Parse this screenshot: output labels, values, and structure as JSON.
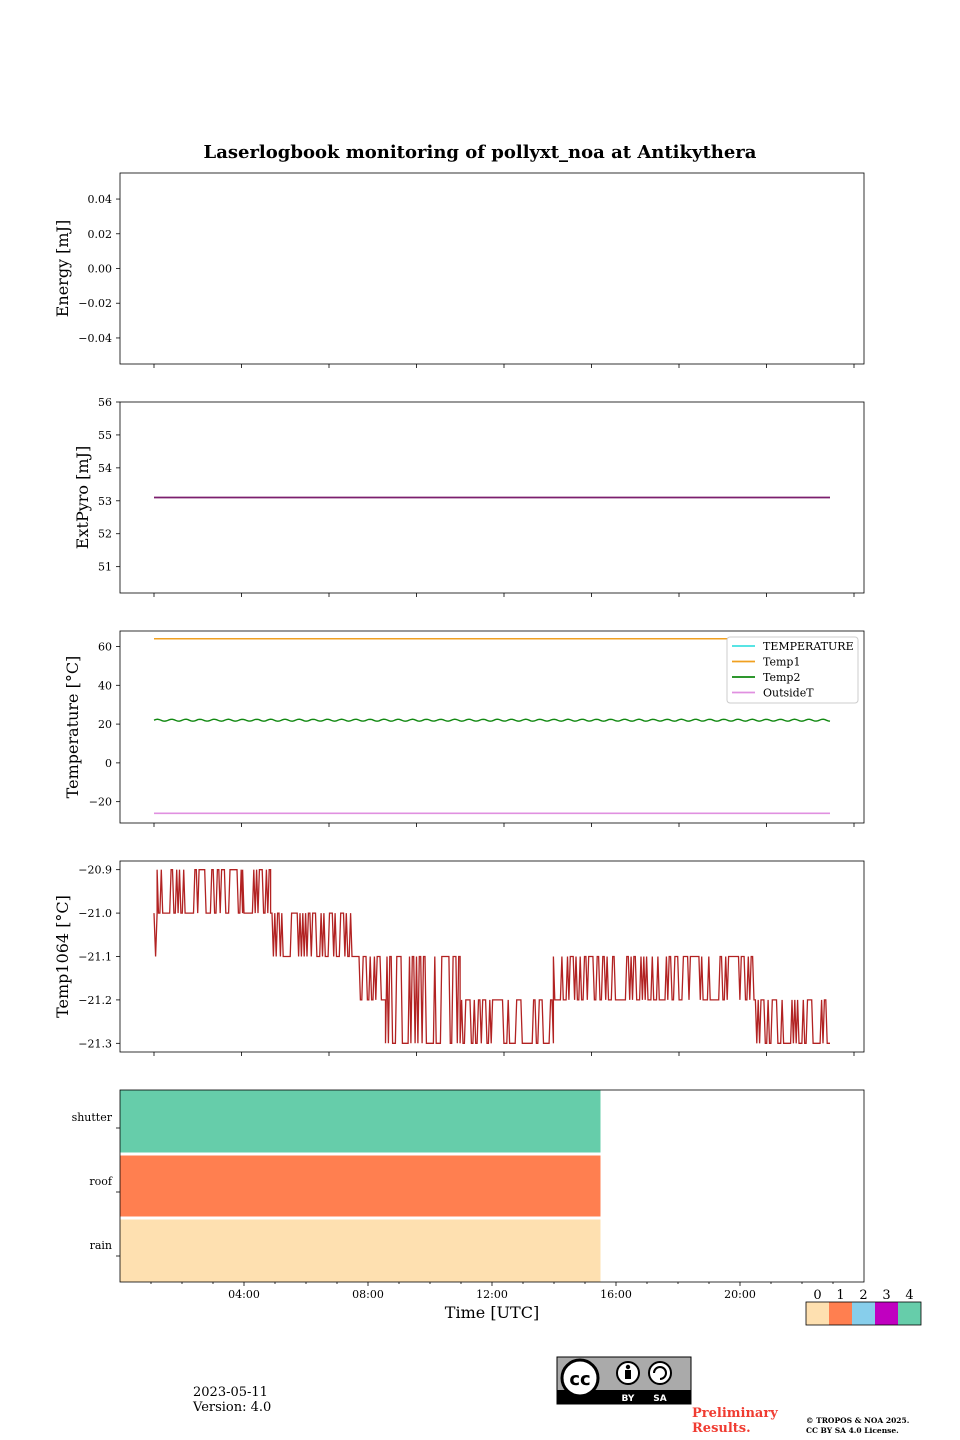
{
  "title": "Laserlogbook monitoring of pollyxt_noa at Antikythera",
  "chart_data": [
    {
      "type": "line",
      "ylabel": "Energy [mJ]",
      "ylim": [
        -0.055,
        0.055
      ],
      "yticks": [
        0.04,
        0.02,
        0.0,
        -0.02,
        -0.04
      ],
      "ytick_labels": [
        "0.04",
        "0.02",
        "0.00",
        "−0.02",
        "−0.04"
      ],
      "series": []
    },
    {
      "type": "line",
      "ylabel": "ExtPyro [mJ]",
      "ylim": [
        50.2,
        56.0
      ],
      "yticks": [
        56,
        55,
        54,
        53,
        52,
        51
      ],
      "ytick_labels": [
        "56",
        "55",
        "54",
        "53",
        "52",
        "51"
      ],
      "series": [
        {
          "x_range": [
            1.15,
            22.9
          ],
          "constant": 53.1,
          "color": "#7b1f6e"
        }
      ]
    },
    {
      "type": "line",
      "ylabel": "Temperature [°C]",
      "ylim": [
        -31,
        68
      ],
      "yticks": [
        60,
        40,
        20,
        0,
        -20
      ],
      "ytick_labels": [
        "60",
        "40",
        "20",
        "0",
        "−20"
      ],
      "legend_placement": "top-right",
      "series": [
        {
          "name": "TEMPERATURE",
          "color": "#40e0e0",
          "constant": null,
          "x_range": [
            1.15,
            22.9
          ]
        },
        {
          "name": "Temp1",
          "color": "#f0a020",
          "constant": 64.0,
          "x_range": [
            1.15,
            22.9
          ]
        },
        {
          "name": "Temp2",
          "color": "#118811",
          "mean": 22.0,
          "oscillation": 0.5,
          "x_range": [
            1.15,
            22.9
          ]
        },
        {
          "name": "OutsideT",
          "color": "#e090e0",
          "constant": -26.0,
          "x_range": [
            1.15,
            22.9
          ]
        }
      ]
    },
    {
      "type": "line",
      "ylabel": "Temp1064 [°C]",
      "ylim": [
        -21.32,
        -20.88
      ],
      "yticks": [
        -20.9,
        -21.0,
        -21.1,
        -21.2,
        -21.3
      ],
      "ytick_labels": [
        "−20.9",
        "−21.0",
        "−21.1",
        "−21.2",
        "−21.3"
      ],
      "series": [
        {
          "color": "#b22222",
          "segments": [
            {
              "x": [
                1.15,
                1.25
              ],
              "values": [
                -21.0,
                -21.1
              ]
            },
            {
              "x": [
                1.25,
                4.0
              ],
              "values": [
                -20.9,
                -21.0
              ]
            },
            {
              "x": [
                4.0,
                4.9
              ],
              "values": [
                -20.9,
                -21.0
              ]
            },
            {
              "x": [
                4.9,
                7.7
              ],
              "values": [
                -21.0,
                -21.1
              ]
            },
            {
              "x": [
                7.7,
                8.6
              ],
              "values": [
                -21.1,
                -21.2
              ]
            },
            {
              "x": [
                8.6,
                11.0
              ],
              "values": [
                -21.1,
                -21.3
              ]
            },
            {
              "x": [
                11.0,
                14.0
              ],
              "values": [
                -21.2,
                -21.3
              ]
            },
            {
              "x": [
                14.0,
                20.5
              ],
              "values": [
                -21.1,
                -21.2
              ]
            },
            {
              "x": [
                20.5,
                22.9
              ],
              "values": [
                -21.2,
                -21.3
              ]
            }
          ]
        }
      ]
    },
    {
      "type": "heatmap",
      "xlabel": "Time [UTC]",
      "xlim": [
        0,
        24
      ],
      "xtick_labels": [
        "04:00",
        "08:00",
        "12:00",
        "16:00",
        "20:00"
      ],
      "xticks": [
        4,
        8,
        12,
        16,
        20
      ],
      "rows": [
        "shutter",
        "roof",
        "rain"
      ],
      "blocks": [
        {
          "row": "shutter",
          "x": [
            0,
            15.5
          ],
          "flag": 4
        },
        {
          "row": "roof",
          "x": [
            0,
            15.5
          ],
          "flag": 1
        },
        {
          "row": "rain",
          "x": [
            0,
            15.5
          ],
          "flag": 0
        }
      ]
    }
  ],
  "colorbar": {
    "labels": [
      "0",
      "1",
      "2",
      "3",
      "4"
    ],
    "colors": [
      "#fee0b0",
      "#ff7f50",
      "#87ceeb",
      "#c000c0",
      "#66cdaa"
    ]
  },
  "footer": {
    "date": "2023-05-11",
    "version": "Version: 4.0",
    "license_badge": "cc-by-sa-icon",
    "badge_by": "BY",
    "badge_sa": "SA",
    "preliminary_line1": "Preliminary",
    "preliminary_line2": "Results.",
    "copyright_line1": "© TROPOS & NOA 2025.",
    "copyright_line2": "CC BY SA 4.0 License."
  }
}
